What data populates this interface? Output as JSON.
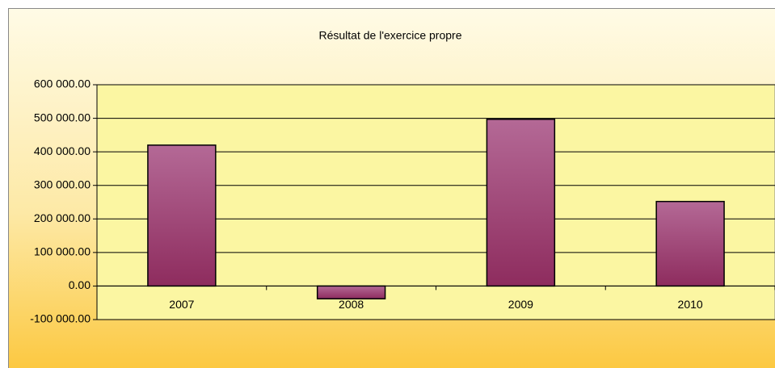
{
  "chart_data": {
    "type": "bar",
    "title": "Résultat de l'exercice propre",
    "categories": [
      "2007",
      "2008",
      "2009",
      "2010"
    ],
    "values": [
      420000,
      -38000,
      497000,
      252000
    ],
    "color": "#a04a7c",
    "ylim": [
      -100000,
      600000
    ],
    "yticks": [
      {
        "value": -100000,
        "label": "-100 000.00"
      },
      {
        "value": 0,
        "label": "0.00"
      },
      {
        "value": 100000,
        "label": "100 000.00"
      },
      {
        "value": 200000,
        "label": "200 000.00"
      },
      {
        "value": 300000,
        "label": "300 000.00"
      },
      {
        "value": 400000,
        "label": "400 000.00"
      },
      {
        "value": 500000,
        "label": "500 000.00"
      },
      {
        "value": 600000,
        "label": "600 000.00"
      }
    ],
    "grid": true
  }
}
